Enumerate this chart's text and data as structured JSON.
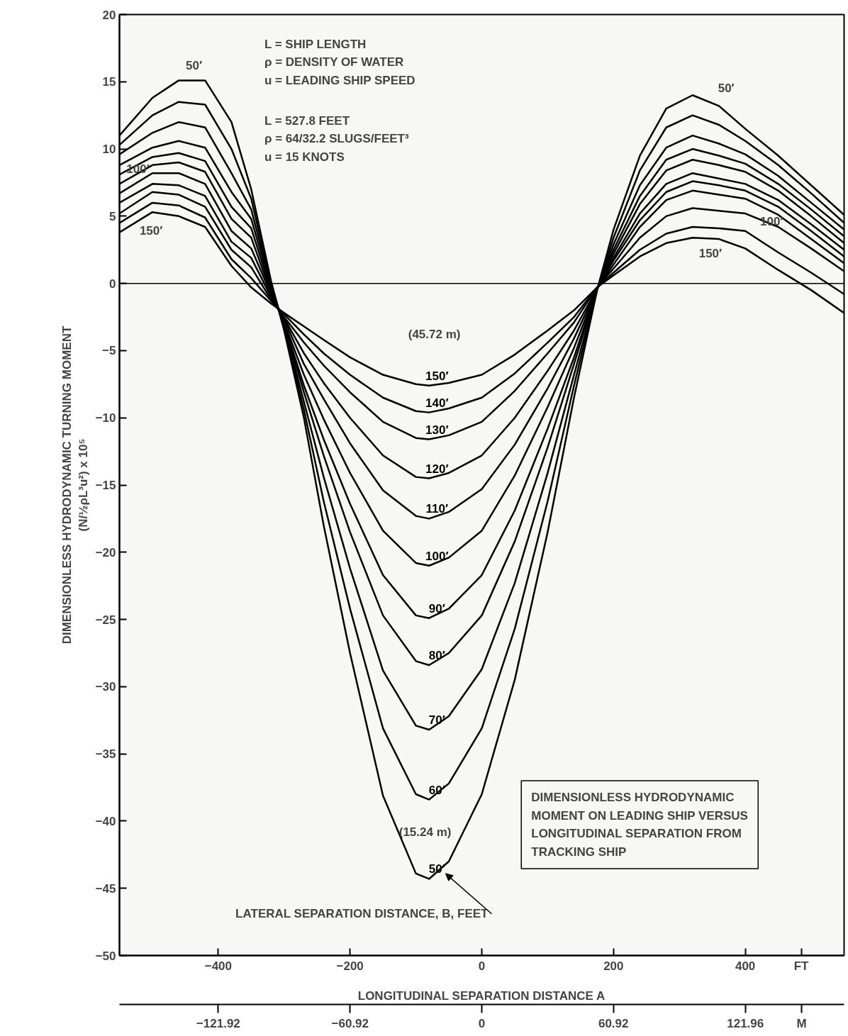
{
  "chart_data": {
    "type": "line",
    "xlabel": "LONGITUDINAL SEPARATION DISTANCE A",
    "ylabel": "DIMENSIONLESS HYDRODYNAMIC TURNING MOMENT\n(N/½ρL³u²) x 10⁵",
    "x": [
      -550,
      -500,
      -460,
      -420,
      -380,
      -350,
      -320,
      -300,
      -270,
      -240,
      -200,
      -150,
      -100,
      -80,
      -50,
      0,
      50,
      100,
      140,
      175,
      200,
      240,
      280,
      320,
      360,
      400,
      450,
      500,
      550
    ],
    "series": [
      {
        "name": "50′",
        "color": "#000000",
        "values": [
          11.0,
          13.8,
          15.1,
          15.1,
          12.0,
          7.0,
          0.2,
          -3.5,
          -10.0,
          -18.0,
          -27.5,
          -38.1,
          -43.9,
          -44.3,
          -43.0,
          -38.0,
          -29.5,
          -18.5,
          -8.5,
          -0.5,
          4.0,
          9.5,
          13.0,
          14.0,
          13.2,
          11.5,
          9.5,
          7.3,
          5.1
        ]
      },
      {
        "name": "60′",
        "color": "#000000",
        "values": [
          10.3,
          12.5,
          13.5,
          13.3,
          10.0,
          6.3,
          0.0,
          -3.4,
          -9.4,
          -16.2,
          -24.2,
          -33.1,
          -38.0,
          -38.4,
          -37.2,
          -33.1,
          -25.7,
          -16.2,
          -7.6,
          -0.5,
          3.4,
          8.4,
          11.6,
          12.5,
          11.8,
          10.6,
          8.8,
          6.7,
          4.5
        ]
      },
      {
        "name": "70′",
        "color": "#000000",
        "values": [
          9.6,
          11.2,
          12.0,
          11.6,
          8.2,
          5.5,
          -0.1,
          -3.2,
          -8.8,
          -14.4,
          -21.2,
          -28.8,
          -32.9,
          -33.2,
          -32.2,
          -28.7,
          -22.3,
          -14.1,
          -6.8,
          -0.5,
          2.9,
          7.3,
          10.1,
          11.0,
          10.4,
          9.6,
          8.0,
          6.0,
          4.0
        ]
      },
      {
        "name": "80′",
        "color": "#000000",
        "values": [
          8.8,
          10.1,
          10.6,
          10.1,
          6.8,
          4.8,
          -0.3,
          -3.1,
          -8.1,
          -12.8,
          -18.5,
          -24.7,
          -28.1,
          -28.4,
          -27.5,
          -24.7,
          -19.2,
          -12.2,
          -6.0,
          -0.4,
          2.5,
          6.5,
          9.2,
          10.0,
          9.5,
          8.9,
          7.4,
          5.5,
          3.5
        ]
      },
      {
        "name": "90′",
        "color": "#000000",
        "values": [
          8.1,
          9.4,
          9.7,
          9.1,
          5.7,
          4.1,
          -0.5,
          -3.0,
          -7.6,
          -11.6,
          -16.4,
          -21.7,
          -24.7,
          -24.9,
          -24.2,
          -21.7,
          -16.9,
          -10.8,
          -5.5,
          -0.4,
          2.2,
          5.9,
          8.4,
          9.2,
          8.8,
          8.3,
          6.9,
          5.0,
          3.0
        ]
      },
      {
        "name": "100′",
        "color": "#000000",
        "values": [
          7.4,
          8.8,
          9.0,
          8.3,
          4.8,
          3.4,
          -0.7,
          -2.9,
          -6.8,
          -10.1,
          -14.1,
          -18.4,
          -20.8,
          -21.0,
          -20.4,
          -18.4,
          -14.3,
          -9.2,
          -4.8,
          -0.4,
          1.9,
          5.2,
          7.4,
          8.2,
          7.8,
          7.4,
          6.2,
          4.4,
          2.5
        ]
      },
      {
        "name": "110′",
        "color": "#000000",
        "values": [
          6.7,
          8.2,
          8.2,
          7.4,
          3.9,
          2.6,
          -0.8,
          -2.7,
          -6.0,
          -8.6,
          -11.9,
          -15.4,
          -17.3,
          -17.5,
          -17.0,
          -15.3,
          -12.0,
          -7.8,
          -4.1,
          -0.4,
          1.7,
          4.7,
          6.8,
          7.6,
          7.3,
          6.9,
          5.7,
          3.9,
          2.0
        ]
      },
      {
        "name": "120′",
        "color": "#000000",
        "values": [
          6.0,
          7.4,
          7.3,
          6.5,
          3.1,
          1.9,
          -1.0,
          -2.6,
          -5.2,
          -7.4,
          -10.0,
          -12.8,
          -14.4,
          -14.5,
          -14.1,
          -12.8,
          -10.0,
          -6.5,
          -3.5,
          -0.4,
          1.4,
          4.2,
          6.2,
          6.9,
          6.6,
          6.3,
          5.1,
          3.3,
          1.5
        ]
      },
      {
        "name": "130′",
        "color": "#000000",
        "values": [
          5.2,
          6.8,
          6.6,
          5.7,
          2.5,
          1.2,
          -1.2,
          -2.5,
          -4.4,
          -6.1,
          -8.1,
          -10.3,
          -11.5,
          -11.6,
          -11.3,
          -10.3,
          -8.0,
          -5.2,
          -2.9,
          -0.3,
          1.1,
          3.4,
          5.0,
          5.6,
          5.4,
          5.2,
          4.2,
          2.6,
          0.9
        ]
      },
      {
        "name": "140′",
        "color": "#000000",
        "values": [
          4.5,
          6.0,
          5.8,
          4.9,
          1.8,
          0.4,
          -1.3,
          -2.3,
          -3.8,
          -5.2,
          -6.8,
          -8.5,
          -9.5,
          -9.6,
          -9.3,
          -8.5,
          -6.7,
          -4.4,
          -2.5,
          -0.3,
          0.8,
          2.5,
          3.7,
          4.2,
          4.1,
          3.9,
          2.3,
          0.8,
          -0.8
        ]
      },
      {
        "name": "150′",
        "color": "#000000",
        "values": [
          3.8,
          5.3,
          5.0,
          4.2,
          1.3,
          -0.3,
          -1.5,
          -2.2,
          -3.2,
          -4.2,
          -5.5,
          -6.8,
          -7.5,
          -7.6,
          -7.4,
          -6.8,
          -5.3,
          -3.5,
          -2.0,
          -0.3,
          0.6,
          2.0,
          3.0,
          3.4,
          3.3,
          2.6,
          1.0,
          -0.5,
          -2.2
        ]
      }
    ],
    "xlim": [
      -550,
      550
    ],
    "xticks": [
      {
        "value": -400,
        "label": "−400"
      },
      {
        "value": -200,
        "label": "−200"
      },
      0,
      200,
      400,
      {
        "value": 485,
        "label": "FT"
      }
    ],
    "x2lim": [
      -167.64,
      167.64
    ],
    "x2ticks": [
      {
        "value": -121.92,
        "label": "−121.92"
      },
      {
        "value": -60.92,
        "label": "−60.92"
      },
      0,
      60.92,
      121.96,
      {
        "value": 148,
        "label": "M"
      }
    ],
    "ylim": [
      -50,
      20
    ],
    "yticks": [
      {
        "value": -50,
        "label": "−50"
      },
      {
        "value": -45,
        "label": "−45"
      },
      {
        "value": -40,
        "label": "−40"
      },
      {
        "value": -35,
        "label": "−35"
      },
      {
        "value": -30,
        "label": "−30"
      },
      {
        "value": -25,
        "label": "−25"
      },
      {
        "value": -20,
        "label": "−20"
      },
      {
        "value": -15,
        "label": "−15"
      },
      {
        "value": -10,
        "label": "−10"
      },
      {
        "value": -5,
        "label": "−5"
      },
      0,
      5,
      10,
      15,
      20
    ],
    "ref_lines": [
      {
        "axis": "y",
        "value": 0,
        "color": "#000000"
      }
    ],
    "line_style": "solid",
    "annotations": [
      "L = SHIP LENGTH\nρ = DENSITY OF WATER\nu = LEADING SHIP SPEED",
      "L = 527.8 FEET\nρ = 64/32.2 SLUGS/FEET³\nu = 15 KNOTS",
      "DIMENSIONLESS HYDRODYNAMIC\nMOMENT ON LEADING SHIP VERSUS\nLONGITUDINAL SEPARATION FROM\nTRACKING SHIP",
      "LATERAL SEPARATION DISTANCE, B, FEET",
      "(45.72 m)",
      "(15.24 m)",
      "50′",
      "100′",
      "150′",
      "50′",
      "100′",
      "150′"
    ]
  }
}
